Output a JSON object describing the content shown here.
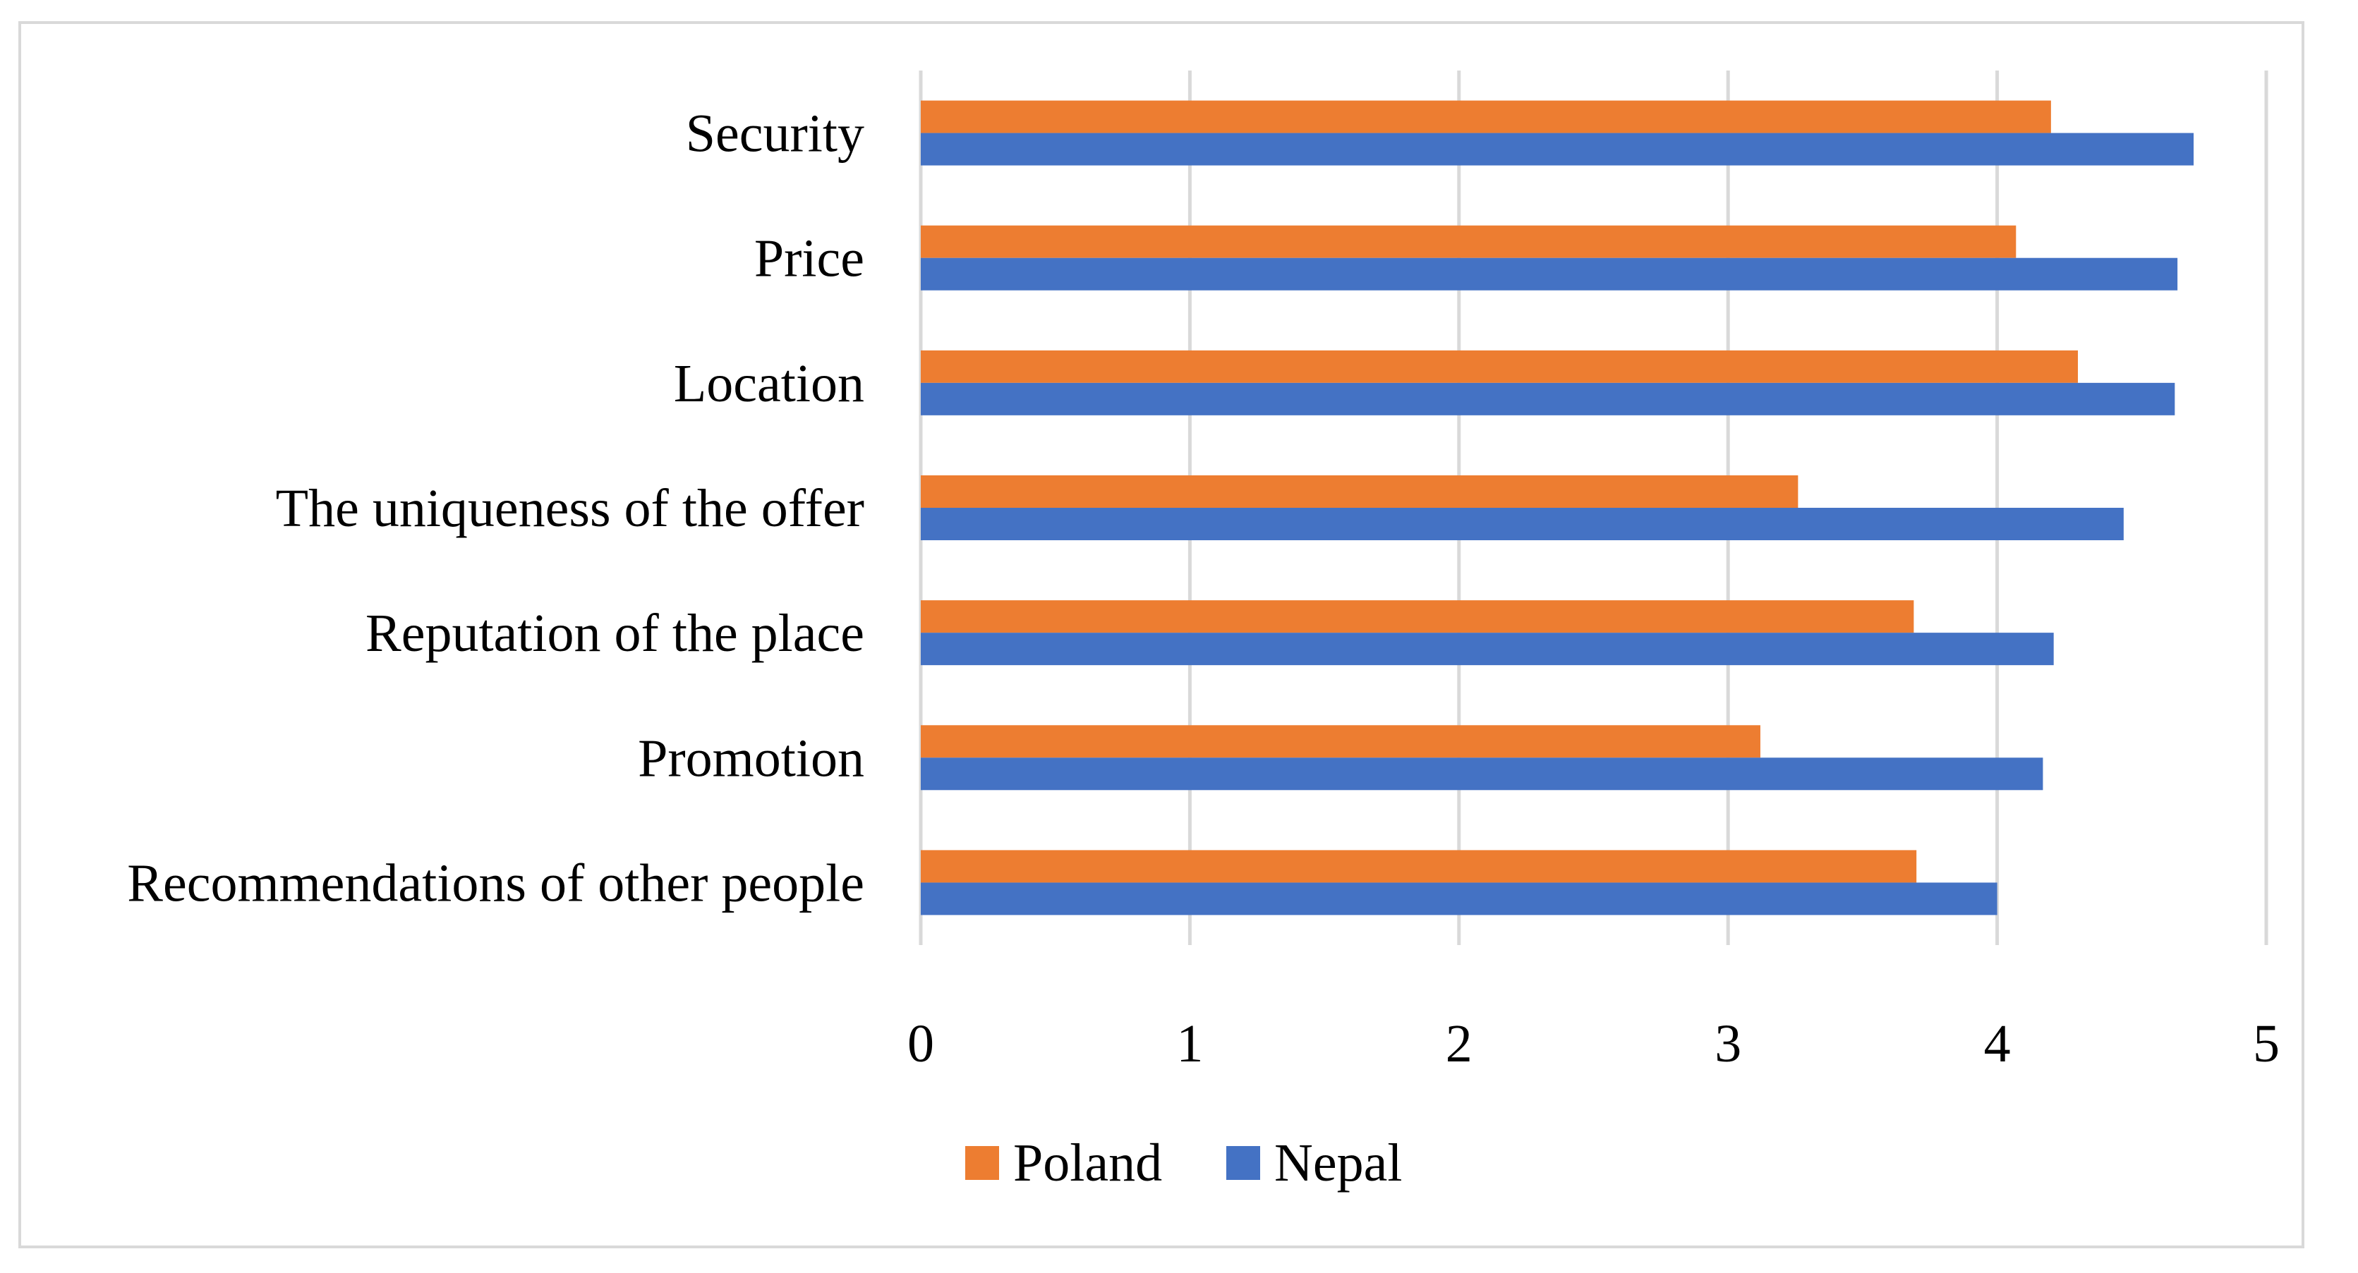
{
  "chart_data": {
    "type": "bar",
    "orientation": "horizontal",
    "title": "",
    "xlabel": "",
    "ylabel": "",
    "xlim": [
      0,
      5
    ],
    "ticks": [
      "0",
      "1",
      "2",
      "3",
      "4",
      "5"
    ],
    "grid": true,
    "legend_position": "bottom",
    "categories": [
      "Security",
      "Price",
      "Location",
      "The uniqueness of the offer",
      "Reputation of the place",
      "Promotion",
      "Recommendations of other people"
    ],
    "series": [
      {
        "name": "Poland",
        "color": "#ED7D31",
        "values": [
          4.2,
          4.07,
          4.3,
          3.26,
          3.69,
          3.12,
          3.7
        ]
      },
      {
        "name": "Nepal",
        "color": "#4472C4",
        "values": [
          4.73,
          4.67,
          4.66,
          4.47,
          4.21,
          4.17,
          4.0
        ]
      }
    ],
    "gridline_color": "#d9d9d9"
  }
}
